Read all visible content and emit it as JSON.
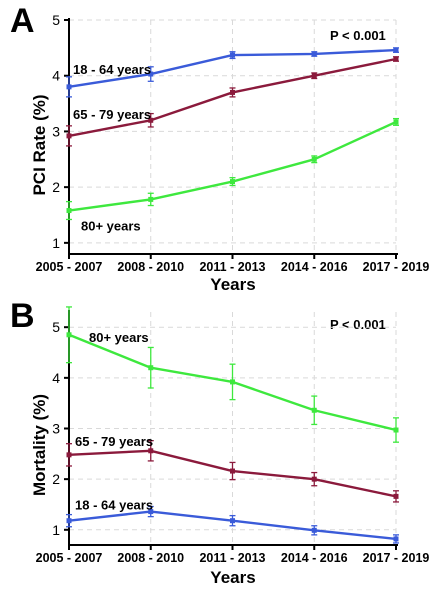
{
  "chart_data": [
    {
      "panel": "A",
      "type": "line",
      "categories": [
        "2005 - 2007",
        "2008 - 2010",
        "2011 - 2013",
        "2014 - 2016",
        "2017 - 2019"
      ],
      "xlabel": "Years",
      "ylabel": "PCI Rate (%)",
      "ylim": [
        0.8,
        5.0
      ],
      "yticks": [
        1,
        2,
        3,
        4,
        5
      ],
      "grid": true,
      "annotation": "P < 0.001",
      "series": [
        {
          "name": "18 - 64 years",
          "color": "#3a5bd9",
          "values": [
            3.8,
            4.03,
            4.37,
            4.39,
            4.46
          ],
          "errors": [
            0.18,
            0.13,
            0.06,
            0.04,
            0.04
          ]
        },
        {
          "name": "65 - 79 years",
          "color": "#8b1a3c",
          "values": [
            2.92,
            3.2,
            3.7,
            4.0,
            4.3
          ],
          "errors": [
            0.18,
            0.12,
            0.08,
            0.05,
            0.04
          ]
        },
        {
          "name": "80+ years",
          "color": "#3ee83e",
          "values": [
            1.58,
            1.78,
            2.1,
            2.5,
            3.17
          ],
          "errors": [
            0.16,
            0.11,
            0.07,
            0.06,
            0.06
          ]
        }
      ]
    },
    {
      "panel": "B",
      "type": "line",
      "categories": [
        "2005 - 2007",
        "2008 - 2010",
        "2011 - 2013",
        "2014 - 2016",
        "2017 - 2019"
      ],
      "xlabel": "Years",
      "ylabel": "Mortality (%)",
      "ylim": [
        0.7,
        5.3
      ],
      "yticks": [
        1,
        2,
        3,
        4,
        5
      ],
      "grid": true,
      "annotation": "P < 0.001",
      "series": [
        {
          "name": "80+ years",
          "color": "#3ee83e",
          "values": [
            4.85,
            4.2,
            3.92,
            3.36,
            2.97
          ],
          "errors": [
            0.55,
            0.4,
            0.35,
            0.28,
            0.24
          ]
        },
        {
          "name": "65 - 79 years",
          "color": "#8b1a3c",
          "values": [
            2.48,
            2.56,
            2.16,
            2.0,
            1.66
          ],
          "errors": [
            0.22,
            0.2,
            0.17,
            0.13,
            0.11
          ]
        },
        {
          "name": "18 - 64 years",
          "color": "#3a5bd9",
          "values": [
            1.18,
            1.36,
            1.18,
            0.99,
            0.82
          ],
          "errors": [
            0.12,
            0.1,
            0.1,
            0.09,
            0.08
          ]
        }
      ]
    }
  ]
}
